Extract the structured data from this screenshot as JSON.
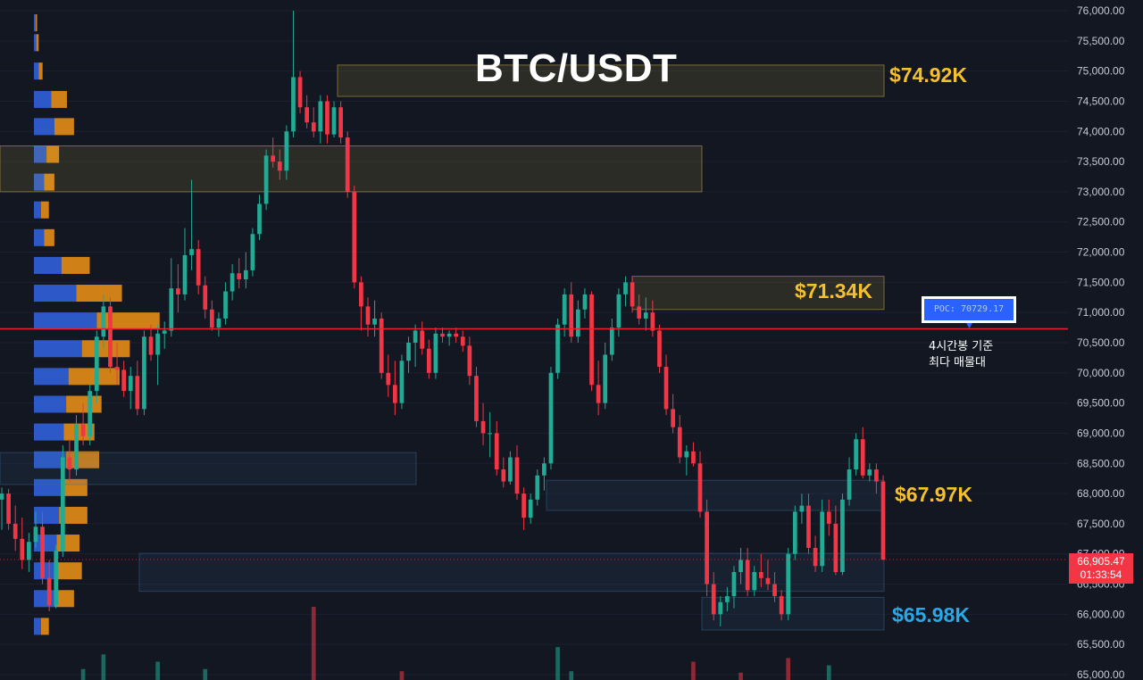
{
  "chart_data": {
    "type": "candlestick",
    "title": "BTC/USDT",
    "y_axis": {
      "ylim": [
        65000,
        76000
      ],
      "tick_labels": [
        "76,000.00",
        "75,500.00",
        "75,000.00",
        "74,500.00",
        "74,000.00",
        "73,500.00",
        "73,000.00",
        "72,500.00",
        "72,000.00",
        "71,500.00",
        "71,000.00",
        "70,500.00",
        "70,000.00",
        "69,500.00",
        "69,000.00",
        "68,500.00",
        "68,000.00",
        "67,500.00",
        "67,000.00",
        "66,500.00",
        "66,000.00",
        "65,500.00",
        "65,000.00"
      ],
      "tick_values": [
        76000,
        75500,
        75000,
        74500,
        74000,
        73500,
        73000,
        72500,
        72000,
        71500,
        71000,
        70500,
        70000,
        69500,
        69000,
        68500,
        68000,
        67500,
        67000,
        66500,
        66000,
        65500,
        65000
      ]
    },
    "current_price": {
      "value": 66905.47,
      "label": "66,905.47",
      "countdown": "01:33:54"
    },
    "poc": {
      "label": "POC: 70729.17",
      "value": 70729.17,
      "note_line1": "4시간봉 기준",
      "note_line2": "최다 매물대"
    },
    "level_labels": [
      {
        "text": "$74.92K",
        "value": 74920,
        "color": "#f5c02c"
      },
      {
        "text": "$71.34K",
        "value": 71340,
        "color": "#f5c02c"
      },
      {
        "text": "$67.97K",
        "value": 67970,
        "color": "#f5c02c"
      },
      {
        "text": "$65.98K",
        "value": 65980,
        "color": "#29a8e8"
      }
    ],
    "zones": [
      {
        "from": 74580,
        "to": 75100,
        "color": "#e8c44a"
      },
      {
        "from": 73000,
        "to": 73760,
        "color": "#e8c44a"
      },
      {
        "from": 71050,
        "to": 71600,
        "color": "#e8c44a"
      },
      {
        "from": 68150,
        "to": 68680,
        "color": "#3a6f9a"
      },
      {
        "from": 67720,
        "to": 68220,
        "color": "#3a6f9a"
      },
      {
        "from": 66380,
        "to": 67010,
        "color": "#3a6f9a"
      },
      {
        "from": 65740,
        "to": 66280,
        "color": "#3a6f9a"
      }
    ],
    "volume_profile": {
      "bin_size": 230,
      "bins": [
        {
          "price": 75800,
          "buy": 4,
          "sell": 4
        },
        {
          "price": 75470,
          "buy": 6,
          "sell": 6
        },
        {
          "price": 75000,
          "buy": 12,
          "sell": 10
        },
        {
          "price": 74530,
          "buy": 44,
          "sell": 40
        },
        {
          "price": 74080,
          "buy": 52,
          "sell": 50
        },
        {
          "price": 73620,
          "buy": 32,
          "sell": 32
        },
        {
          "price": 73160,
          "buy": 26,
          "sell": 26
        },
        {
          "price": 72700,
          "buy": 18,
          "sell": 20
        },
        {
          "price": 72240,
          "buy": 26,
          "sell": 26
        },
        {
          "price": 71780,
          "buy": 70,
          "sell": 72
        },
        {
          "price": 71320,
          "buy": 108,
          "sell": 116
        },
        {
          "price": 70860,
          "buy": 160,
          "sell": 160
        },
        {
          "price": 70400,
          "buy": 122,
          "sell": 122
        },
        {
          "price": 69940,
          "buy": 88,
          "sell": 130
        },
        {
          "price": 69480,
          "buy": 82,
          "sell": 90
        },
        {
          "price": 69020,
          "buy": 76,
          "sell": 78
        },
        {
          "price": 68560,
          "buy": 82,
          "sell": 84
        },
        {
          "price": 68100,
          "buy": 70,
          "sell": 66
        },
        {
          "price": 67640,
          "buy": 64,
          "sell": 72
        },
        {
          "price": 67180,
          "buy": 58,
          "sell": 58
        },
        {
          "price": 66720,
          "buy": 56,
          "sell": 66
        },
        {
          "price": 66260,
          "buy": 52,
          "sell": 50
        },
        {
          "price": 65800,
          "buy": 18,
          "sell": 20
        }
      ]
    },
    "candles": [
      [
        67900,
        68100,
        67400,
        68000
      ],
      [
        68000,
        68080,
        67400,
        67500
      ],
      [
        67500,
        67800,
        67050,
        67250
      ],
      [
        67250,
        67600,
        66750,
        66900
      ],
      [
        66900,
        67350,
        66700,
        67200
      ],
      [
        67200,
        67700,
        67100,
        67450
      ],
      [
        67450,
        67700,
        66500,
        66600
      ],
      [
        66600,
        66900,
        66050,
        66150
      ],
      [
        66150,
        67150,
        66100,
        67050
      ],
      [
        67050,
        68800,
        66950,
        68600
      ],
      [
        68600,
        68900,
        68200,
        68400
      ],
      [
        68400,
        69300,
        68300,
        69150
      ],
      [
        69150,
        69500,
        68800,
        68950
      ],
      [
        68950,
        69800,
        68800,
        69700
      ],
      [
        69700,
        70700,
        69500,
        70600
      ],
      [
        70600,
        71300,
        70400,
        71100
      ],
      [
        71100,
        71250,
        70000,
        70100
      ],
      [
        70100,
        70500,
        69800,
        70050
      ],
      [
        70050,
        70200,
        69600,
        69700
      ],
      [
        69700,
        70100,
        69400,
        69950
      ],
      [
        69950,
        70200,
        69300,
        69400
      ],
      [
        69400,
        70700,
        69300,
        70600
      ],
      [
        70600,
        70800,
        70200,
        70300
      ],
      [
        70300,
        70800,
        69800,
        70650
      ],
      [
        70650,
        70850,
        70400,
        70700
      ],
      [
        70700,
        71900,
        70600,
        71400
      ],
      [
        71400,
        71800,
        71000,
        71300
      ],
      [
        71300,
        72400,
        71200,
        71950
      ],
      [
        71950,
        73200,
        71700,
        72050
      ],
      [
        72050,
        72200,
        71300,
        71450
      ],
      [
        71450,
        71600,
        70900,
        71050
      ],
      [
        71050,
        71200,
        70700,
        70750
      ],
      [
        70750,
        71000,
        70600,
        70900
      ],
      [
        70900,
        71500,
        70800,
        71350
      ],
      [
        71350,
        71800,
        71200,
        71650
      ],
      [
        71650,
        71900,
        71400,
        71550
      ],
      [
        71550,
        72000,
        71400,
        71700
      ],
      [
        71700,
        72400,
        71600,
        72300
      ],
      [
        72300,
        72950,
        72200,
        72800
      ],
      [
        72800,
        73700,
        72700,
        73600
      ],
      [
        73600,
        73900,
        73400,
        73500
      ],
      [
        73500,
        73700,
        73200,
        73350
      ],
      [
        73350,
        74100,
        73200,
        74000
      ],
      [
        74000,
        76000,
        73900,
        74900
      ],
      [
        74900,
        75000,
        74300,
        74400
      ],
      [
        74400,
        74600,
        74050,
        74150
      ],
      [
        74150,
        74400,
        73900,
        74000
      ],
      [
        74000,
        74600,
        73800,
        74500
      ],
      [
        74500,
        74600,
        73800,
        73950
      ],
      [
        73950,
        74500,
        73900,
        74400
      ],
      [
        74400,
        74500,
        73800,
        73900
      ],
      [
        73900,
        74000,
        72900,
        73000
      ],
      [
        73000,
        73100,
        71400,
        71500
      ],
      [
        71500,
        71600,
        70700,
        71100
      ],
      [
        71100,
        71250,
        70600,
        70800
      ],
      [
        70800,
        71200,
        70600,
        70900
      ],
      [
        70900,
        71000,
        69900,
        70000
      ],
      [
        70000,
        70300,
        69600,
        69800
      ],
      [
        69800,
        70200,
        69300,
        69500
      ],
      [
        69500,
        70300,
        69400,
        70200
      ],
      [
        70200,
        70600,
        70000,
        70500
      ],
      [
        70500,
        70800,
        70100,
        70700
      ],
      [
        70700,
        70850,
        70300,
        70400
      ],
      [
        70400,
        70550,
        69900,
        70000
      ],
      [
        70000,
        70750,
        69900,
        70650
      ],
      [
        70650,
        70750,
        70500,
        70600
      ],
      [
        70600,
        70700,
        70450,
        70650
      ],
      [
        70650,
        70750,
        70500,
        70600
      ],
      [
        70600,
        70700,
        70350,
        70450
      ],
      [
        70450,
        70600,
        69800,
        69950
      ],
      [
        69950,
        70100,
        69100,
        69200
      ],
      [
        69200,
        69500,
        68800,
        69000
      ],
      [
        69000,
        69350,
        68600,
        69000
      ],
      [
        69000,
        69200,
        68300,
        68400
      ],
      [
        68400,
        68600,
        68100,
        68200
      ],
      [
        68200,
        68700,
        68150,
        68600
      ],
      [
        68600,
        68800,
        67900,
        68000
      ],
      [
        68000,
        68100,
        67400,
        67600
      ],
      [
        67600,
        68000,
        67500,
        67900
      ],
      [
        67900,
        68400,
        67800,
        68300
      ],
      [
        68300,
        68600,
        68050,
        68500
      ],
      [
        68500,
        70100,
        68400,
        70000
      ],
      [
        70000,
        70900,
        69900,
        70800
      ],
      [
        70800,
        71400,
        70600,
        71300
      ],
      [
        71300,
        71500,
        70500,
        70600
      ],
      [
        70600,
        71200,
        70500,
        71050
      ],
      [
        71050,
        71400,
        70900,
        71300
      ],
      [
        71300,
        71350,
        69700,
        69800
      ],
      [
        69800,
        70200,
        69300,
        69500
      ],
      [
        69500,
        70500,
        69400,
        70300
      ],
      [
        70300,
        70900,
        70200,
        70750
      ],
      [
        70750,
        71400,
        70600,
        71300
      ],
      [
        71300,
        71600,
        71100,
        71500
      ],
      [
        71500,
        71600,
        71000,
        71100
      ],
      [
        71100,
        71300,
        70800,
        70900
      ],
      [
        70900,
        71250,
        70700,
        71000
      ],
      [
        71000,
        71200,
        70600,
        70700
      ],
      [
        70700,
        70800,
        70000,
        70100
      ],
      [
        70100,
        70300,
        69300,
        69400
      ],
      [
        69400,
        69650,
        69000,
        69100
      ],
      [
        69100,
        69300,
        68500,
        68600
      ],
      [
        68600,
        68800,
        68300,
        68700
      ],
      [
        68700,
        68850,
        68450,
        68500
      ],
      [
        68500,
        68700,
        67600,
        67700
      ],
      [
        67700,
        67900,
        66300,
        66500
      ],
      [
        66500,
        66700,
        65900,
        66000
      ],
      [
        66000,
        66300,
        65800,
        66200
      ],
      [
        66200,
        66450,
        66050,
        66300
      ],
      [
        66300,
        66800,
        66100,
        66700
      ],
      [
        66700,
        67100,
        66500,
        66900
      ],
      [
        66900,
        67100,
        66300,
        66400
      ],
      [
        66400,
        66800,
        66300,
        66700
      ],
      [
        66700,
        67000,
        66450,
        66600
      ],
      [
        66600,
        66900,
        66400,
        66500
      ],
      [
        66500,
        66700,
        66200,
        66300
      ],
      [
        66300,
        66400,
        65900,
        66000
      ],
      [
        66000,
        67100,
        65900,
        67000
      ],
      [
        67000,
        67800,
        66900,
        67700
      ],
      [
        67700,
        68000,
        67500,
        67800
      ],
      [
        67800,
        68000,
        67000,
        67100
      ],
      [
        67100,
        67300,
        66700,
        66800
      ],
      [
        66800,
        67900,
        66700,
        67700
      ],
      [
        67700,
        67900,
        67300,
        67500
      ],
      [
        67500,
        67800,
        66650,
        66700
      ],
      [
        66700,
        68000,
        66650,
        67900
      ],
      [
        67900,
        68600,
        67800,
        68400
      ],
      [
        68400,
        69000,
        68300,
        68900
      ],
      [
        68900,
        69100,
        68250,
        68300
      ],
      [
        68300,
        68500,
        68200,
        68400
      ],
      [
        68400,
        68500,
        68000,
        68200
      ],
      [
        68200,
        68300,
        66900,
        66905
      ]
    ],
    "volume": [
      {
        "i": 15,
        "v": 0.35,
        "dir": "up"
      },
      {
        "i": 23,
        "v": 0.25,
        "dir": "up"
      },
      {
        "i": 46,
        "v": 1.0,
        "dir": "down"
      },
      {
        "i": 82,
        "v": 0.45,
        "dir": "up"
      },
      {
        "i": 116,
        "v": 0.3,
        "dir": "down"
      },
      {
        "i": 122,
        "v": 0.2,
        "dir": "up"
      },
      {
        "i": 12,
        "v": 0.15,
        "dir": "up"
      },
      {
        "i": 30,
        "v": 0.15,
        "dir": "up"
      },
      {
        "i": 84,
        "v": 0.12,
        "dir": "up"
      },
      {
        "i": 102,
        "v": 0.25,
        "dir": "down"
      },
      {
        "i": 109,
        "v": 0.1,
        "dir": "down"
      },
      {
        "i": 59,
        "v": 0.12,
        "dir": "down"
      }
    ]
  }
}
